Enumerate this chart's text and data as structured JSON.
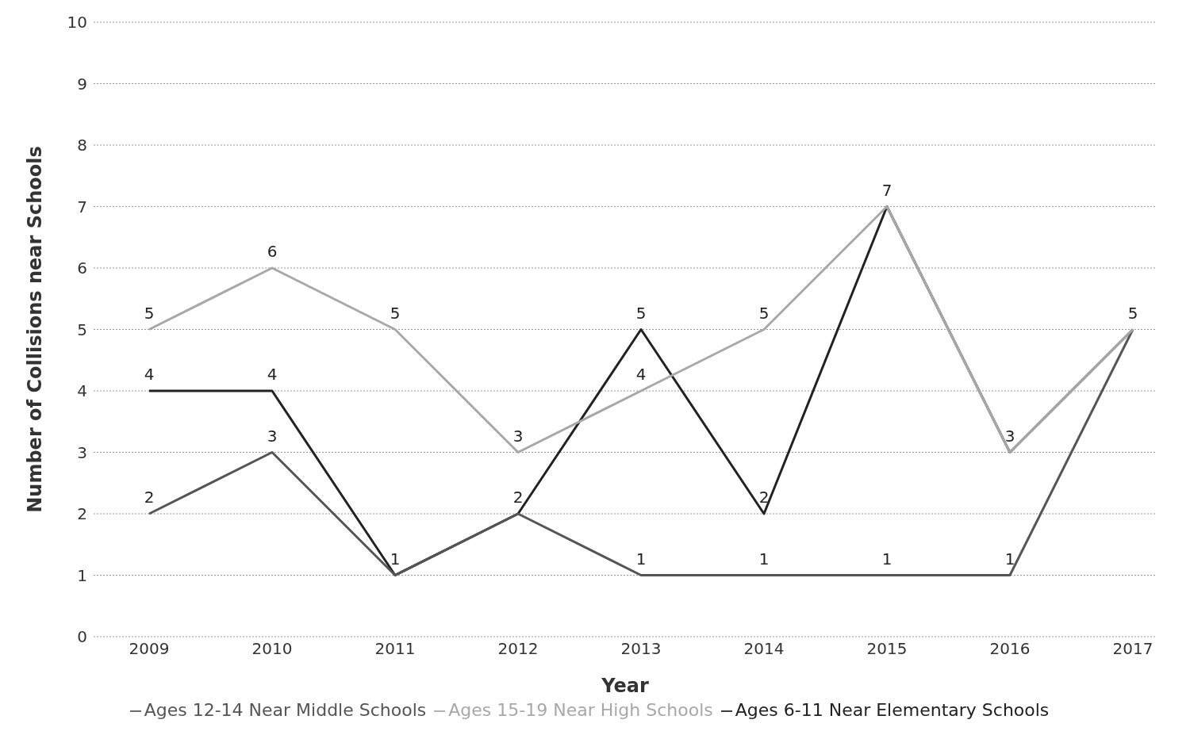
{
  "chart_data": {
    "type": "line",
    "xlabel": "Year",
    "ylabel": "Number of Collisions near Schools",
    "categories": [
      "2009",
      "2010",
      "2011",
      "2012",
      "2013",
      "2014",
      "2015",
      "2016",
      "2017"
    ],
    "ylim": [
      0,
      10
    ],
    "yticks": [
      0,
      1,
      2,
      3,
      4,
      5,
      6,
      7,
      8,
      9,
      10
    ],
    "grid": "y",
    "legend": "bottom",
    "marker": "none",
    "line_style": "solid",
    "series": [
      {
        "name": "Ages 6-11 Near Elementary Schools",
        "color": "#222222",
        "values": [
          4,
          4,
          1,
          2,
          5,
          2,
          7,
          3,
          5
        ],
        "value_labels": [
          "4",
          "4",
          "1",
          "2",
          "5",
          "2",
          "7",
          "3",
          "5"
        ]
      },
      {
        "name": "Ages 12-14 Near Middle Schools",
        "color": "#555555",
        "values": [
          2,
          3,
          1,
          2,
          1,
          1,
          1,
          1,
          5
        ],
        "value_labels": [
          "2",
          "3",
          null,
          null,
          "1",
          "1",
          "1",
          "1",
          null
        ]
      },
      {
        "name": "Ages 15-19 Near High Schools",
        "color": "#a8a8a8",
        "values": [
          5,
          6,
          5,
          3,
          4,
          5,
          7,
          3,
          5
        ],
        "value_labels": [
          "5",
          "6",
          "5",
          "3",
          "4",
          "5",
          null,
          null,
          null
        ]
      }
    ]
  }
}
